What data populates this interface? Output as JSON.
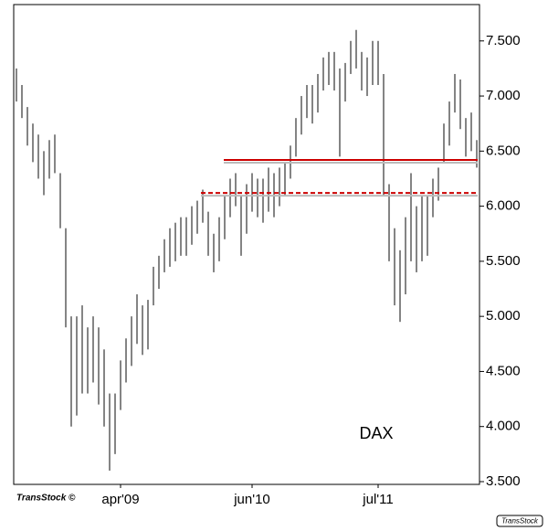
{
  "chart_data": {
    "type": "ohlc",
    "annotation": "DAX",
    "source": "TransStock ©",
    "watermark": "TransStock",
    "categories": [
      null,
      null,
      null,
      null,
      null,
      null,
      null,
      null,
      null,
      null,
      null,
      null,
      null,
      null,
      null,
      null,
      null,
      null,
      null,
      "apr'09",
      null,
      null,
      null,
      null,
      null,
      null,
      null,
      null,
      null,
      null,
      null,
      null,
      null,
      null,
      null,
      null,
      null,
      null,
      null,
      null,
      null,
      null,
      null,
      "jun'10",
      null,
      null,
      null,
      null,
      null,
      null,
      null,
      null,
      null,
      null,
      null,
      null,
      null,
      null,
      null,
      null,
      null,
      null,
      null,
      null,
      null,
      null,
      "jul'11",
      null,
      null,
      null,
      null,
      null,
      null,
      null,
      null,
      null,
      null,
      null,
      null,
      null,
      null,
      null,
      null,
      null,
      null
    ],
    "high": [
      7250,
      7100,
      6900,
      6750,
      6650,
      6500,
      6600,
      6650,
      6300,
      5800,
      5000,
      5000,
      5100,
      4900,
      5000,
      4900,
      4700,
      4300,
      4300,
      4600,
      4800,
      5000,
      5200,
      5100,
      5150,
      5450,
      5550,
      5700,
      5800,
      5850,
      5900,
      5900,
      6000,
      6050,
      6150,
      5950,
      5750,
      5900,
      6100,
      6250,
      6300,
      6100,
      6200,
      6300,
      6250,
      6250,
      6350,
      6300,
      6350,
      6400,
      6550,
      6800,
      7000,
      7100,
      7100,
      7200,
      7350,
      7400,
      7400,
      7250,
      7300,
      7500,
      7600,
      7400,
      7350,
      7500,
      7500,
      7200,
      6200,
      5800,
      5600,
      5900,
      6300,
      6000,
      6100,
      6100,
      6250,
      6350,
      6750,
      6950,
      7200,
      7150,
      6800,
      6850,
      6600
    ],
    "low": [
      6950,
      6800,
      6550,
      6400,
      6250,
      6100,
      6250,
      6300,
      5800,
      4900,
      4000,
      4100,
      4300,
      4300,
      4400,
      4200,
      4000,
      3600,
      3750,
      4150,
      4400,
      4550,
      4750,
      4650,
      4700,
      5100,
      5250,
      5400,
      5450,
      5500,
      5550,
      5550,
      5650,
      5750,
      5850,
      5550,
      5400,
      5500,
      5700,
      5900,
      6000,
      5550,
      5750,
      5950,
      5900,
      5850,
      5950,
      5900,
      6000,
      6100,
      6250,
      6450,
      6650,
      6800,
      6750,
      6850,
      7050,
      7100,
      7050,
      6450,
      6950,
      7200,
      7250,
      7050,
      7000,
      7100,
      7100,
      6100,
      5500,
      5100,
      4950,
      5200,
      5500,
      5400,
      5500,
      5550,
      5900,
      6050,
      6400,
      6550,
      6850,
      6700,
      6450,
      6500,
      6350
    ],
    "color": "#333333",
    "ylim": [
      3475,
      7830
    ],
    "yticks": [
      {
        "value": 3500,
        "label": "3.500"
      },
      {
        "value": 4000,
        "label": "4.000"
      },
      {
        "value": 4500,
        "label": "4.500"
      },
      {
        "value": 5000,
        "label": "5.000"
      },
      {
        "value": 5500,
        "label": "5.500"
      },
      {
        "value": 6000,
        "label": "6.000"
      },
      {
        "value": 6500,
        "label": "6.500"
      },
      {
        "value": 7000,
        "label": "7.000"
      },
      {
        "value": 7500,
        "label": "7.500"
      }
    ],
    "hlines": [
      {
        "value": 6420,
        "style": "solid",
        "color": "#cc0000"
      },
      {
        "value": 6120,
        "style": "dashed",
        "color": "#cc0000"
      }
    ]
  }
}
